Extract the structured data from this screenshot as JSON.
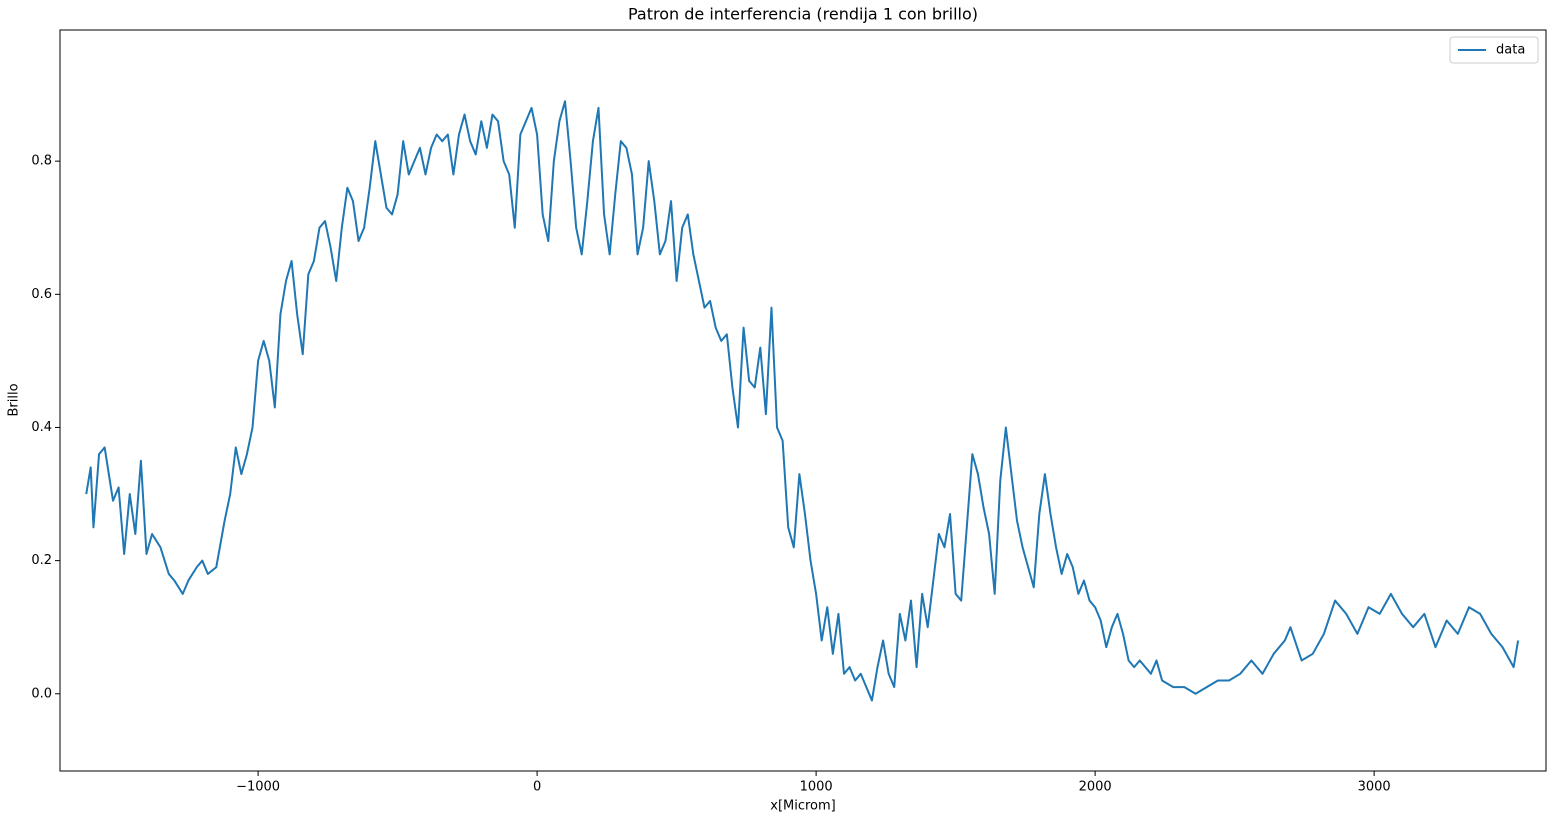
{
  "chart_data": {
    "type": "line",
    "title": "Patron de interferencia (rendija 1 con brillo)",
    "x_label": "x[Microm]",
    "y_label": "Brillo",
    "xlim": [
      -1710,
      3616
    ],
    "ylim": [
      -0.116,
      0.997
    ],
    "xticks": [
      {
        "value": -1000,
        "label": "−1000"
      },
      0,
      1000,
      2000,
      3000
    ],
    "yticks": [
      {
        "value": 0,
        "label": "0.0"
      },
      0.2,
      0.4,
      0.6,
      0.8
    ],
    "legend": "upper right",
    "grid": false,
    "x": [
      -1616,
      -1600,
      -1590,
      -1570,
      -1550,
      -1520,
      -1500,
      -1480,
      -1460,
      -1440,
      -1420,
      -1400,
      -1380,
      -1350,
      -1320,
      -1300,
      -1270,
      -1250,
      -1220,
      -1200,
      -1180,
      -1150,
      -1120,
      -1100,
      -1080,
      -1060,
      -1040,
      -1020,
      -1000,
      -980,
      -960,
      -940,
      -920,
      -900,
      -880,
      -860,
      -840,
      -820,
      -800,
      -780,
      -760,
      -740,
      -720,
      -700,
      -680,
      -660,
      -640,
      -620,
      -600,
      -580,
      -560,
      -540,
      -520,
      -500,
      -480,
      -460,
      -440,
      -420,
      -400,
      -380,
      -360,
      -340,
      -320,
      -300,
      -280,
      -260,
      -240,
      -220,
      -200,
      -180,
      -160,
      -140,
      -120,
      -100,
      -80,
      -60,
      -40,
      -20,
      0,
      20,
      40,
      60,
      80,
      100,
      120,
      140,
      160,
      180,
      200,
      220,
      240,
      260,
      280,
      300,
      320,
      340,
      360,
      380,
      400,
      420,
      440,
      460,
      480,
      500,
      520,
      540,
      560,
      580,
      600,
      620,
      640,
      660,
      680,
      700,
      720,
      740,
      760,
      780,
      800,
      820,
      840,
      860,
      880,
      900,
      920,
      940,
      960,
      980,
      1000,
      1020,
      1040,
      1060,
      1080,
      1100,
      1120,
      1140,
      1160,
      1180,
      1200,
      1220,
      1240,
      1260,
      1280,
      1300,
      1320,
      1340,
      1360,
      1380,
      1400,
      1420,
      1440,
      1460,
      1480,
      1500,
      1520,
      1540,
      1560,
      1580,
      1600,
      1620,
      1640,
      1660,
      1680,
      1700,
      1720,
      1740,
      1760,
      1780,
      1800,
      1820,
      1840,
      1860,
      1880,
      1900,
      1920,
      1940,
      1960,
      1980,
      2000,
      2020,
      2040,
      2060,
      2080,
      2100,
      2120,
      2140,
      2160,
      2180,
      2200,
      2220,
      2240,
      2280,
      2320,
      2360,
      2400,
      2440,
      2480,
      2520,
      2560,
      2600,
      2640,
      2680,
      2700,
      2740,
      2780,
      2820,
      2860,
      2900,
      2940,
      2980,
      3020,
      3060,
      3100,
      3140,
      3180,
      3220,
      3260,
      3300,
      3340,
      3380,
      3420,
      3460,
      3500,
      3516
    ],
    "series": [
      {
        "name": "data",
        "color": "#1f77b4",
        "values": [
          0.3,
          0.34,
          0.25,
          0.36,
          0.37,
          0.29,
          0.31,
          0.21,
          0.3,
          0.24,
          0.35,
          0.21,
          0.24,
          0.22,
          0.18,
          0.17,
          0.15,
          0.17,
          0.19,
          0.2,
          0.18,
          0.19,
          0.26,
          0.3,
          0.37,
          0.33,
          0.36,
          0.4,
          0.5,
          0.53,
          0.5,
          0.43,
          0.57,
          0.62,
          0.65,
          0.57,
          0.51,
          0.63,
          0.65,
          0.7,
          0.71,
          0.67,
          0.62,
          0.7,
          0.76,
          0.74,
          0.68,
          0.7,
          0.76,
          0.83,
          0.78,
          0.73,
          0.72,
          0.75,
          0.83,
          0.78,
          0.8,
          0.82,
          0.78,
          0.82,
          0.84,
          0.83,
          0.84,
          0.78,
          0.84,
          0.87,
          0.83,
          0.81,
          0.86,
          0.82,
          0.87,
          0.86,
          0.8,
          0.78,
          0.7,
          0.84,
          0.86,
          0.88,
          0.84,
          0.72,
          0.68,
          0.8,
          0.86,
          0.89,
          0.8,
          0.7,
          0.66,
          0.74,
          0.83,
          0.88,
          0.72,
          0.66,
          0.75,
          0.83,
          0.82,
          0.78,
          0.66,
          0.7,
          0.8,
          0.74,
          0.66,
          0.68,
          0.74,
          0.62,
          0.7,
          0.72,
          0.66,
          0.62,
          0.58,
          0.59,
          0.55,
          0.53,
          0.54,
          0.46,
          0.4,
          0.55,
          0.47,
          0.46,
          0.52,
          0.42,
          0.58,
          0.4,
          0.38,
          0.25,
          0.22,
          0.33,
          0.27,
          0.2,
          0.15,
          0.08,
          0.13,
          0.06,
          0.12,
          0.03,
          0.04,
          0.02,
          0.03,
          0.01,
          -0.01,
          0.04,
          0.08,
          0.03,
          0.01,
          0.12,
          0.08,
          0.14,
          0.04,
          0.15,
          0.1,
          0.17,
          0.24,
          0.22,
          0.27,
          0.15,
          0.14,
          0.25,
          0.36,
          0.33,
          0.28,
          0.24,
          0.15,
          0.32,
          0.4,
          0.33,
          0.26,
          0.22,
          0.19,
          0.16,
          0.27,
          0.33,
          0.27,
          0.22,
          0.18,
          0.21,
          0.19,
          0.15,
          0.17,
          0.14,
          0.13,
          0.11,
          0.07,
          0.1,
          0.12,
          0.09,
          0.05,
          0.04,
          0.05,
          0.04,
          0.03,
          0.05,
          0.02,
          0.01,
          0.01,
          0.0,
          0.01,
          0.02,
          0.02,
          0.03,
          0.05,
          0.03,
          0.06,
          0.08,
          0.1,
          0.05,
          0.06,
          0.09,
          0.14,
          0.12,
          0.09,
          0.13,
          0.12,
          0.15,
          0.12,
          0.1,
          0.12,
          0.07,
          0.11,
          0.09,
          0.13,
          0.12,
          0.09,
          0.07,
          0.04,
          0.08
        ]
      }
    ]
  }
}
